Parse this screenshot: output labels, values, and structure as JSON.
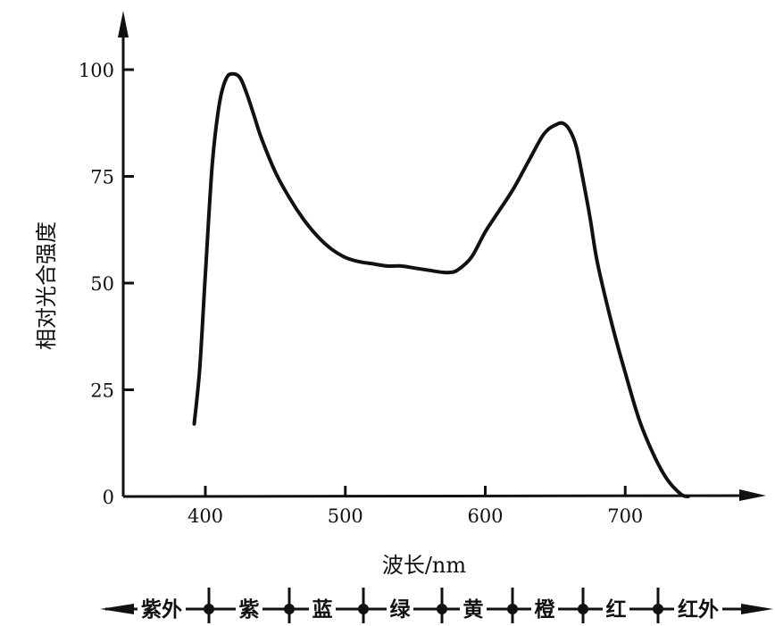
{
  "chart_data": {
    "type": "line",
    "title": "",
    "xlabel": "波长/nm",
    "ylabel": "相对光合强度",
    "xlim": [
      342,
      815
    ],
    "ylim": [
      0,
      112
    ],
    "xticks": [
      "400",
      "500",
      "600",
      "700"
    ],
    "yticks": [
      "0",
      "25",
      "50",
      "75",
      "100"
    ],
    "grid": false,
    "legend": "none",
    "series": [
      {
        "name": "",
        "color": "#111111",
        "x": [
          392,
          396,
          400,
          405,
          410,
          415,
          420,
          425,
          430,
          435,
          440,
          450,
          460,
          470,
          480,
          490,
          500,
          510,
          520,
          530,
          540,
          550,
          560,
          570,
          575,
          580,
          590,
          600,
          610,
          620,
          630,
          640,
          645,
          650,
          655,
          660,
          665,
          670,
          675,
          680,
          690,
          700,
          710,
          720,
          730,
          740,
          745
        ],
        "y": [
          17,
          30,
          52,
          78,
          92,
          98,
          99,
          98,
          94,
          89,
          84,
          76,
          70,
          65,
          61,
          58,
          56,
          55,
          54.5,
          54,
          54,
          53.5,
          53,
          52.5,
          52.5,
          53,
          56,
          62,
          67,
          72,
          78,
          84,
          86,
          87,
          87.5,
          86,
          82,
          74,
          65,
          55,
          41,
          29,
          18,
          10,
          4,
          0.5,
          0
        ]
      }
    ]
  },
  "spectrum_bands": [
    "紫外",
    "紫",
    "蓝",
    "绿",
    "黄",
    "橙",
    "红",
    "红外"
  ]
}
